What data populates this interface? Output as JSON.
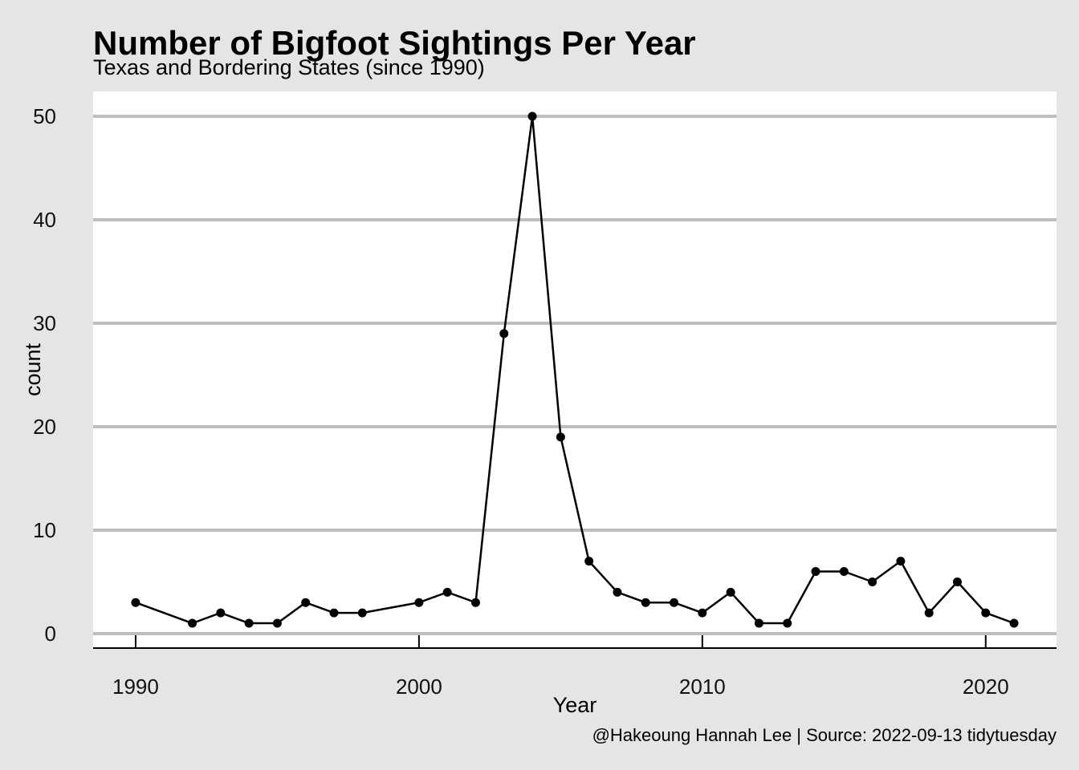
{
  "chart_data": {
    "type": "line",
    "title": "Number of Bigfoot Sightings Per Year",
    "subtitle": "Texas and Bordering States (since 1990)",
    "xlabel": "Year",
    "ylabel": "count",
    "caption": "@Hakeoung Hannah Lee | Source: 2022-09-13 tidytuesday",
    "x_ticks": [
      1990,
      2000,
      2010,
      2020
    ],
    "y_ticks": [
      0,
      10,
      20,
      30,
      40,
      50
    ],
    "xlim": [
      1988.5,
      2022.5
    ],
    "ylim": [
      -1.4,
      52.4
    ],
    "grid": "horizontal major only",
    "markers": true,
    "line_color": "#000000",
    "x": [
      1990,
      1992,
      1993,
      1994,
      1995,
      1996,
      1997,
      1998,
      2000,
      2001,
      2002,
      2003,
      2004,
      2005,
      2006,
      2007,
      2008,
      2009,
      2010,
      2011,
      2012,
      2013,
      2014,
      2015,
      2016,
      2017,
      2018,
      2019,
      2020,
      2021
    ],
    "y": [
      3,
      1,
      2,
      1,
      1,
      3,
      2,
      2,
      3,
      4,
      3,
      29,
      50,
      19,
      7,
      4,
      3,
      3,
      2,
      4,
      1,
      1,
      6,
      6,
      5,
      7,
      2,
      5,
      2,
      1
    ]
  },
  "colors": {
    "background": "#e5e5e5",
    "panel": "#ffffff",
    "gridline": "#bebebe",
    "axis_line": "#000000"
  }
}
